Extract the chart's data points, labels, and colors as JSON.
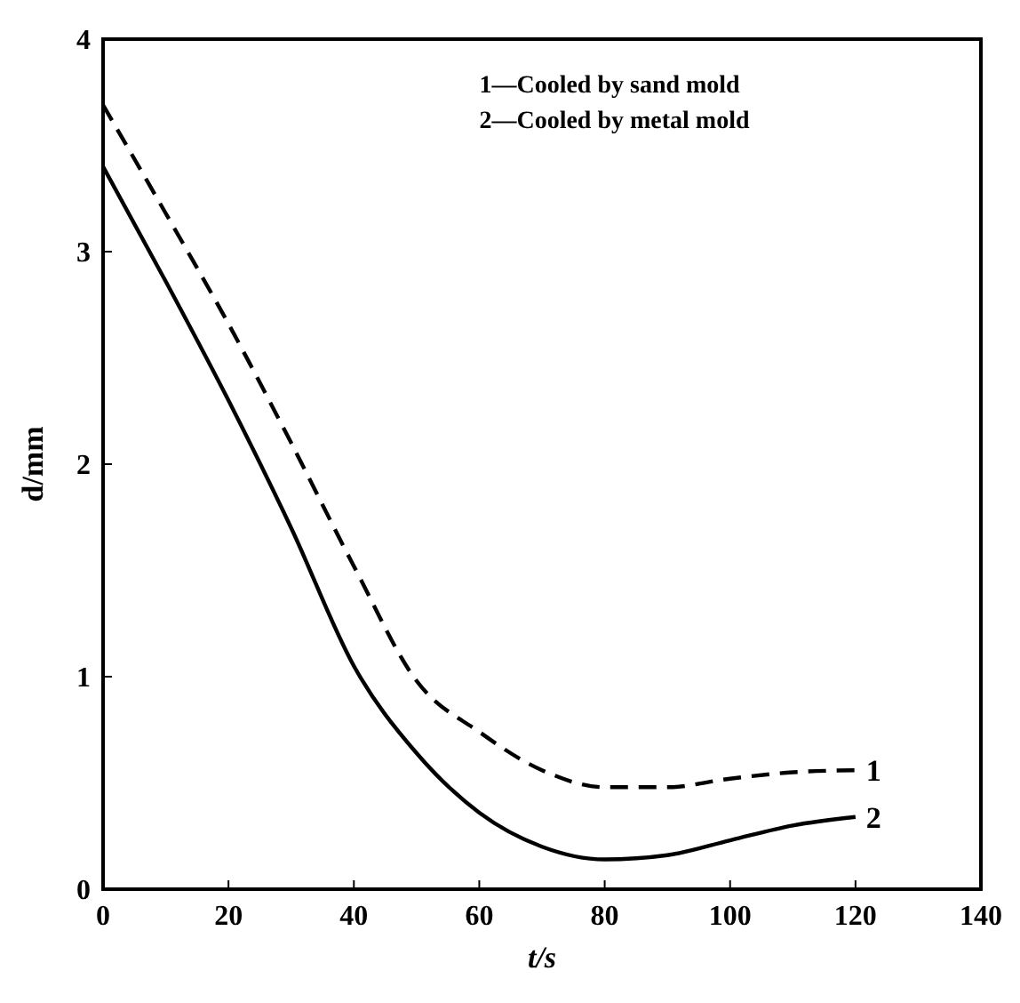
{
  "chart_data": {
    "type": "line",
    "xlabel": "t/s",
    "ylabel": "d/mm",
    "xlim": [
      0,
      140
    ],
    "ylim": [
      0,
      4
    ],
    "xticks": [
      0,
      20,
      40,
      60,
      80,
      100,
      120,
      140
    ],
    "yticks": [
      0,
      1,
      2,
      3,
      4
    ],
    "grid": false,
    "x": [
      0,
      10,
      20,
      30,
      40,
      50,
      60,
      70,
      80,
      90,
      100,
      110,
      120
    ],
    "series": [
      {
        "name": "1",
        "color": "#000000",
        "line_style": "dashed",
        "values": [
          3.69,
          3.18,
          2.66,
          2.1,
          1.52,
          0.98,
          0.74,
          0.56,
          0.48,
          0.48,
          0.52,
          0.55,
          0.56
        ]
      },
      {
        "name": "2",
        "color": "#000000",
        "line_style": "solid",
        "values": [
          3.4,
          2.86,
          2.3,
          1.7,
          1.05,
          0.64,
          0.36,
          0.2,
          0.14,
          0.16,
          0.23,
          0.3,
          0.34
        ]
      }
    ],
    "annotations": [
      "1—Cooled by sand mold",
      "2—Cooled by metal mold"
    ]
  }
}
